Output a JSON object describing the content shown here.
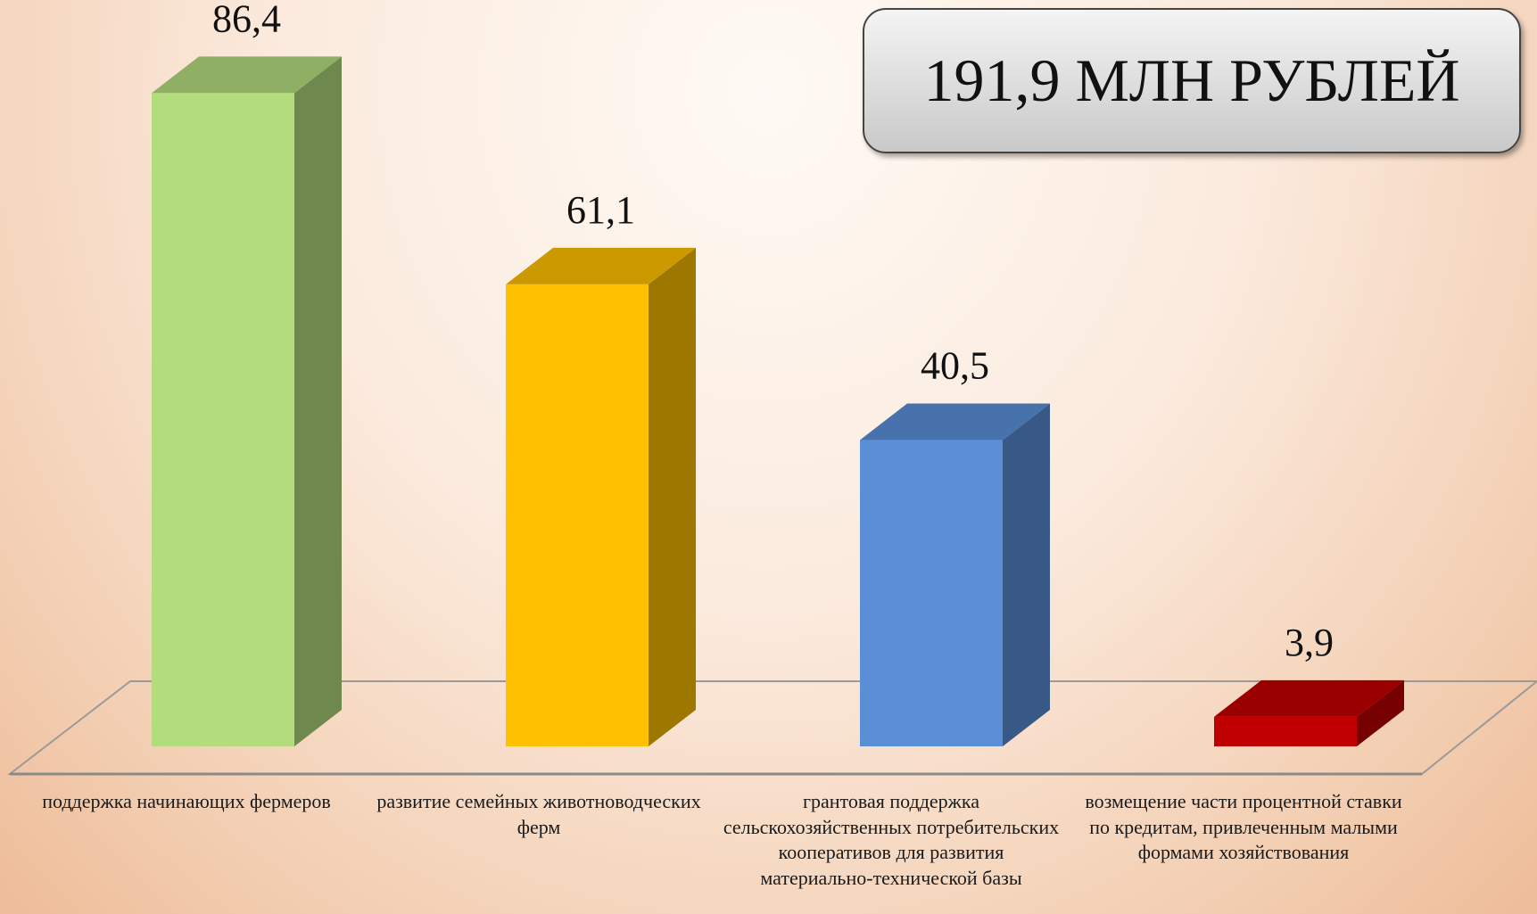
{
  "chart_data": {
    "type": "bar3d",
    "annotation": "191,9 МЛН РУБЛЕЙ",
    "categories": [
      "поддержка начинающих фермеров",
      "развитие семейных животноводческих ферм",
      "грантовая поддержка сельскохозяйственных потребительских кооперативов для развития материально-технической базы",
      "возмещение части процентной ставки по кредитам, привлеченным малыми формами хозяйствования"
    ],
    "values": [
      86.4,
      61.1,
      40.5,
      3.9
    ],
    "value_labels": [
      "86,4",
      "61,1",
      "40,5",
      "3,9"
    ],
    "colors": [
      "#b3dc7d",
      "#ffc000",
      "#5a8ed6",
      "#c00000"
    ]
  }
}
